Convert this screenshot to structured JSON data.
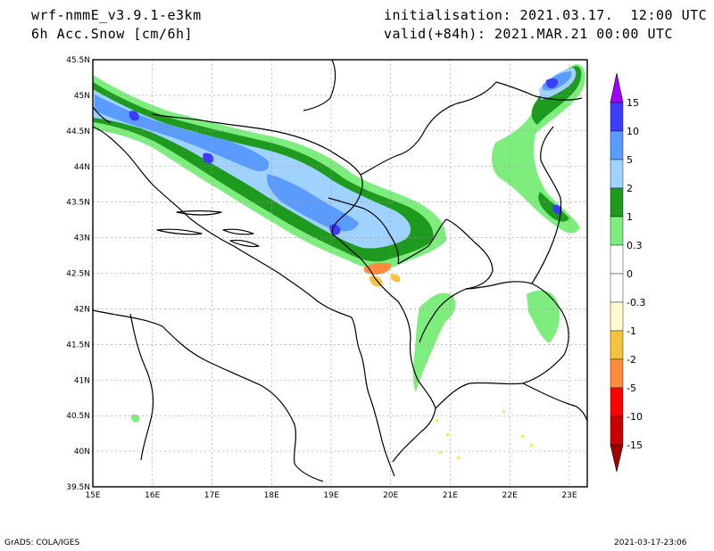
{
  "header": {
    "model": "wrf-nmmE_v3.9.1-e3km",
    "field": "6h Acc.Snow [cm/6h]",
    "init": "initialisation: 2021.03.17.  12:00 UTC",
    "valid": "valid(+84h): 2021.MAR.21 00:00 UTC"
  },
  "axes": {
    "lon_range": [
      15,
      23.3
    ],
    "lat_range": [
      39.5,
      45.5
    ],
    "lon_ticks": [
      "15E",
      "16E",
      "17E",
      "18E",
      "19E",
      "20E",
      "21E",
      "22E",
      "23E"
    ],
    "lat_ticks": [
      "39.5N",
      "40N",
      "40.5N",
      "41N",
      "41.5N",
      "42N",
      "42.5N",
      "43N",
      "43.5N",
      "44N",
      "44.5N",
      "45N",
      "45.5N"
    ]
  },
  "legend": {
    "labels": [
      "15",
      "10",
      "5",
      "2",
      "1",
      "0.3",
      "0",
      "-0.3",
      "-1",
      "-2",
      "-5",
      "-10",
      "-15"
    ],
    "colors": [
      "#a000ff",
      "#3c3cff",
      "#5a9bff",
      "#a0d2ff",
      "#1e9b1e",
      "#7ded7d",
      "#ffffff",
      "#ffffff",
      "#fffacd",
      "#f5c43c",
      "#ff8c3c",
      "#ff0000",
      "#c80000",
      "#a00000"
    ]
  },
  "footer": {
    "left": "GrADS: COLA/IGES",
    "right": "2021-03-17-23:06"
  }
}
